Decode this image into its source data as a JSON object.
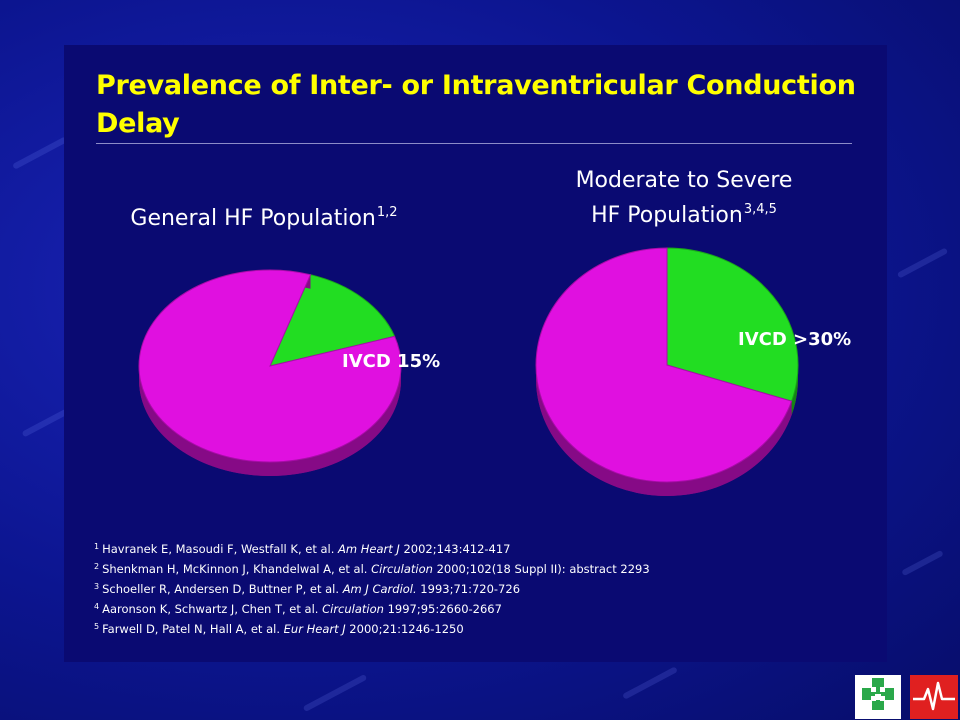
{
  "title": "Prevalence of Inter- or Intraventricular Conduction Delay",
  "chart_data": [
    {
      "type": "pie",
      "title_main": "General HF Population",
      "title_sup": "1,2",
      "slices": [
        {
          "label": "IVCD 15%",
          "value": 15,
          "color": "#22dd22"
        },
        {
          "label": "",
          "value": 85,
          "color": "#e010e0"
        }
      ]
    },
    {
      "type": "pie",
      "title_line1": "Moderate to Severe",
      "title_main": "HF Population",
      "title_sup": "3,4,5",
      "slices": [
        {
          "label": "IVCD >30%",
          "value": 30,
          "color": "#22dd22"
        },
        {
          "label": "",
          "value": 70,
          "color": "#e010e0"
        }
      ]
    }
  ],
  "references": [
    {
      "num": "1",
      "pre": "Havranek E, Masoudi F, Westfall K, et al. ",
      "journal": "Am Heart J",
      "post": " 2002;143:412-417"
    },
    {
      "num": "2",
      "pre": "Shenkman H, McKinnon J, Khandelwal A, et al. ",
      "journal": "Circulation",
      "post": " 2000;102(18 Suppl II): abstract 2293"
    },
    {
      "num": "3",
      "pre": "Schoeller R, Andersen D, Buttner P, et al. ",
      "journal": "Am J Cardiol.",
      "post": " 1993;71:720-726"
    },
    {
      "num": "4",
      "pre": "Aaronson K, Schwartz J, Chen T, et al. ",
      "journal": "Circulation",
      "post": " 1997;95:2660-2667"
    },
    {
      "num": "5",
      "pre": "Farwell D, Patel N, Hall A, et al. ",
      "journal": "Eur Heart J",
      "post": " 2000;21:1246-1250"
    }
  ],
  "colors": {
    "title": "#ffff00",
    "background": "#0c1590",
    "panel": "#0a0a72",
    "logo_green": "#2aa84a",
    "logo_red": "#e02020"
  },
  "logos": [
    "health-system-cross-logo",
    "heartbeat-logo"
  ]
}
